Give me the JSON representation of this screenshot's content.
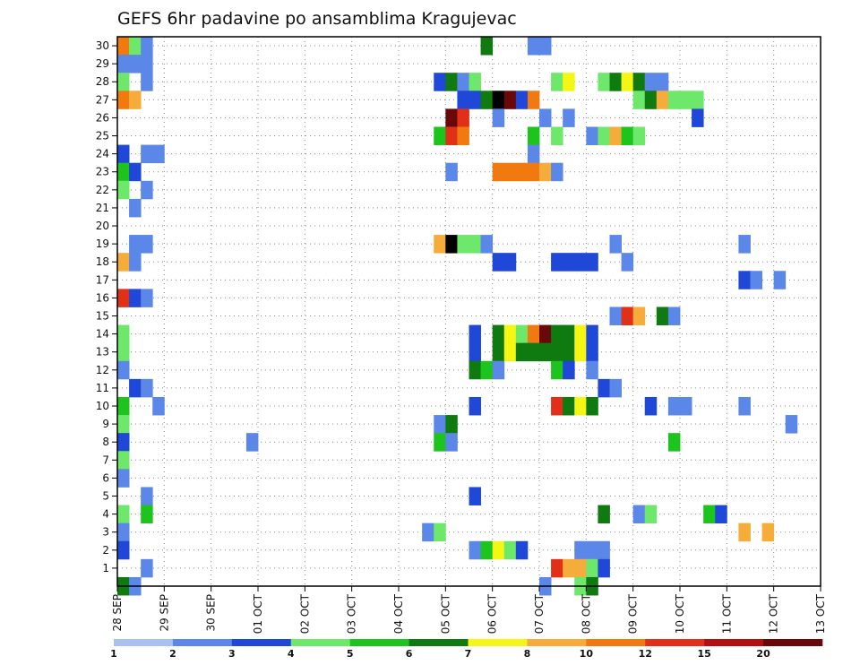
{
  "chart_data": {
    "type": "heatmap",
    "title": "GEFS 6hr padavine po ansamblima Kragujevac",
    "xlabel": "",
    "ylabel": "",
    "x_tick_labels": [
      "28 SEP",
      "29 SEP",
      "30 SEP",
      "01 OCT",
      "02 OCT",
      "03 OCT",
      "04 OCT",
      "05 OCT",
      "06 OCT",
      "07 OCT",
      "08 OCT",
      "09 OCT",
      "10 OCT",
      "11 OCT",
      "12 OCT",
      "13 OCT"
    ],
    "y_tick_labels": [
      "1",
      "2",
      "3",
      "4",
      "5",
      "6",
      "7",
      "8",
      "9",
      "10",
      "11",
      "12",
      "13",
      "14",
      "15",
      "16",
      "17",
      "18",
      "19",
      "20",
      "21",
      "22",
      "23",
      "24",
      "25",
      "26",
      "27",
      "28",
      "29",
      "30"
    ],
    "xlim": [
      0,
      60
    ],
    "ylim": [
      0,
      30.5
    ],
    "step_unit": "6hr",
    "grid": true,
    "legend_position": "bottom",
    "legend": {
      "labels": [
        "1",
        "2",
        "3",
        "4",
        "5",
        "6",
        "7",
        "8",
        "10",
        "12",
        "15",
        "20"
      ],
      "colors": [
        "#a8c0f2",
        "#5b87e8",
        "#1f48d8",
        "#6ee86a",
        "#1ec41e",
        "#0f7a0f",
        "#f6f614",
        "#f6ac3a",
        "#f07a10",
        "#e03018",
        "#b01010",
        "#680808"
      ]
    },
    "cells": [
      [
        0,
        30,
        8
      ],
      [
        1,
        30,
        3
      ],
      [
        2,
        30,
        1
      ],
      [
        31,
        30,
        5
      ],
      [
        35,
        30,
        1
      ],
      [
        36,
        30,
        1
      ],
      [
        0,
        29,
        1
      ],
      [
        1,
        29,
        1
      ],
      [
        2,
        29,
        1
      ],
      [
        0,
        28,
        3
      ],
      [
        2,
        28,
        1
      ],
      [
        27,
        28,
        2
      ],
      [
        28,
        28,
        5
      ],
      [
        29,
        28,
        1
      ],
      [
        30,
        28,
        3
      ],
      [
        37,
        28,
        3
      ],
      [
        38,
        28,
        6
      ],
      [
        41,
        28,
        3
      ],
      [
        42,
        28,
        5
      ],
      [
        43,
        28,
        6
      ],
      [
        44,
        28,
        5
      ],
      [
        45,
        28,
        1
      ],
      [
        46,
        28,
        1
      ],
      [
        0,
        27,
        8
      ],
      [
        1,
        27,
        7
      ],
      [
        29,
        27,
        2
      ],
      [
        30,
        27,
        2
      ],
      [
        31,
        27,
        5
      ],
      [
        32,
        27,
        12
      ],
      [
        33,
        27,
        11
      ],
      [
        34,
        27,
        2
      ],
      [
        35,
        27,
        8
      ],
      [
        44,
        27,
        3
      ],
      [
        45,
        27,
        5
      ],
      [
        46,
        27,
        7
      ],
      [
        47,
        27,
        3
      ],
      [
        48,
        27,
        3
      ],
      [
        49,
        27,
        3
      ],
      [
        28,
        26,
        11
      ],
      [
        29,
        26,
        9
      ],
      [
        32,
        26,
        1
      ],
      [
        36,
        26,
        1
      ],
      [
        38,
        26,
        1
      ],
      [
        49,
        26,
        2
      ],
      [
        27,
        25,
        4
      ],
      [
        28,
        25,
        9
      ],
      [
        29,
        25,
        8
      ],
      [
        35,
        25,
        4
      ],
      [
        37,
        25,
        3
      ],
      [
        40,
        25,
        1
      ],
      [
        41,
        25,
        3
      ],
      [
        42,
        25,
        7
      ],
      [
        43,
        25,
        4
      ],
      [
        44,
        25,
        3
      ],
      [
        0,
        24,
        2
      ],
      [
        2,
        24,
        1
      ],
      [
        3,
        24,
        1
      ],
      [
        35,
        24,
        1
      ],
      [
        0,
        23,
        4
      ],
      [
        1,
        23,
        2
      ],
      [
        28,
        23,
        1
      ],
      [
        32,
        23,
        8
      ],
      [
        33,
        23,
        8
      ],
      [
        34,
        23,
        8
      ],
      [
        35,
        23,
        8
      ],
      [
        36,
        23,
        7
      ],
      [
        37,
        23,
        1
      ],
      [
        0,
        22,
        3
      ],
      [
        2,
        22,
        1
      ],
      [
        1,
        21,
        1
      ],
      [
        1,
        19,
        1
      ],
      [
        2,
        19,
        1
      ],
      [
        27,
        19,
        7
      ],
      [
        28,
        19,
        12
      ],
      [
        29,
        19,
        3
      ],
      [
        30,
        19,
        3
      ],
      [
        31,
        19,
        1
      ],
      [
        42,
        19,
        1
      ],
      [
        53,
        19,
        1
      ],
      [
        0,
        18,
        7
      ],
      [
        1,
        18,
        1
      ],
      [
        32,
        18,
        2
      ],
      [
        33,
        18,
        2
      ],
      [
        37,
        18,
        2
      ],
      [
        38,
        18,
        2
      ],
      [
        39,
        18,
        2
      ],
      [
        40,
        18,
        2
      ],
      [
        43,
        18,
        1
      ],
      [
        53,
        17,
        2
      ],
      [
        54,
        17,
        1
      ],
      [
        56,
        17,
        1
      ],
      [
        0,
        16,
        9
      ],
      [
        1,
        16,
        2
      ],
      [
        2,
        16,
        1
      ],
      [
        42,
        15,
        1
      ],
      [
        43,
        15,
        9
      ],
      [
        44,
        15,
        7
      ],
      [
        46,
        15,
        5
      ],
      [
        47,
        15,
        1
      ],
      [
        0,
        14,
        3
      ],
      [
        30,
        14,
        2
      ],
      [
        32,
        14,
        5
      ],
      [
        33,
        14,
        6
      ],
      [
        34,
        14,
        3
      ],
      [
        35,
        14,
        8
      ],
      [
        36,
        14,
        11
      ],
      [
        37,
        14,
        5
      ],
      [
        38,
        14,
        5
      ],
      [
        39,
        14,
        6
      ],
      [
        40,
        14,
        2
      ],
      [
        0,
        13,
        3
      ],
      [
        30,
        13,
        2
      ],
      [
        32,
        13,
        5
      ],
      [
        33,
        13,
        6
      ],
      [
        34,
        13,
        5
      ],
      [
        35,
        13,
        5
      ],
      [
        36,
        13,
        5
      ],
      [
        37,
        13,
        5
      ],
      [
        38,
        13,
        5
      ],
      [
        39,
        13,
        6
      ],
      [
        40,
        13,
        2
      ],
      [
        0,
        12,
        1
      ],
      [
        30,
        12,
        5
      ],
      [
        31,
        12,
        4
      ],
      [
        32,
        12,
        1
      ],
      [
        37,
        12,
        4
      ],
      [
        38,
        12,
        2
      ],
      [
        40,
        12,
        1
      ],
      [
        1,
        11,
        2
      ],
      [
        2,
        11,
        1
      ],
      [
        41,
        11,
        2
      ],
      [
        42,
        11,
        1
      ],
      [
        0,
        10,
        4
      ],
      [
        3,
        10,
        1
      ],
      [
        30,
        10,
        2
      ],
      [
        37,
        10,
        9
      ],
      [
        38,
        10,
        5
      ],
      [
        39,
        10,
        6
      ],
      [
        40,
        10,
        5
      ],
      [
        45,
        10,
        2
      ],
      [
        47,
        10,
        1
      ],
      [
        48,
        10,
        1
      ],
      [
        53,
        10,
        1
      ],
      [
        0,
        9,
        3
      ],
      [
        27,
        9,
        1
      ],
      [
        28,
        9,
        5
      ],
      [
        57,
        9,
        1
      ],
      [
        0,
        8,
        2
      ],
      [
        11,
        8,
        1
      ],
      [
        27,
        8,
        4
      ],
      [
        28,
        8,
        1
      ],
      [
        47,
        8,
        4
      ],
      [
        0,
        7,
        3
      ],
      [
        0,
        6,
        1
      ],
      [
        2,
        5,
        1
      ],
      [
        30,
        5,
        2
      ],
      [
        0,
        4,
        3
      ],
      [
        2,
        4,
        4
      ],
      [
        41,
        4,
        5
      ],
      [
        44,
        4,
        1
      ],
      [
        45,
        4,
        3
      ],
      [
        50,
        4,
        4
      ],
      [
        51,
        4,
        2
      ],
      [
        0,
        3,
        1
      ],
      [
        26,
        3,
        1
      ],
      [
        27,
        3,
        3
      ],
      [
        53,
        3,
        7
      ],
      [
        55,
        3,
        7
      ],
      [
        0,
        2,
        2
      ],
      [
        30,
        2,
        1
      ],
      [
        31,
        2,
        4
      ],
      [
        32,
        2,
        6
      ],
      [
        33,
        2,
        3
      ],
      [
        34,
        2,
        2
      ],
      [
        39,
        2,
        1
      ],
      [
        40,
        2,
        1
      ],
      [
        41,
        2,
        1
      ],
      [
        2,
        1,
        1
      ],
      [
        37,
        1,
        9
      ],
      [
        38,
        1,
        7
      ],
      [
        39,
        1,
        7
      ],
      [
        40,
        1,
        3
      ],
      [
        41,
        1,
        2
      ],
      [
        0,
        0,
        5
      ],
      [
        1,
        0,
        1
      ],
      [
        36,
        0,
        1
      ],
      [
        39,
        0,
        3
      ],
      [
        40,
        0,
        5
      ]
    ]
  }
}
